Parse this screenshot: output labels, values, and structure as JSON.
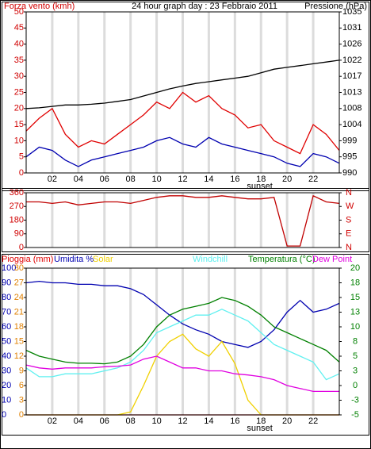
{
  "chart_data": [
    {
      "type": "line",
      "title": "24 hour graph day : 23 Febbraio 2011",
      "ylabel": "Forza vento (kmh)",
      "y2label": "Pressione (hPa)",
      "annotation": "sunset",
      "x": [
        0,
        1,
        2,
        3,
        4,
        5,
        6,
        7,
        8,
        9,
        10,
        11,
        12,
        13,
        14,
        15,
        16,
        17,
        18,
        19,
        20,
        21,
        22,
        23,
        24
      ],
      "xlim": [
        0,
        24
      ],
      "xticks": [
        {
          "value": 2,
          "label": "02"
        },
        {
          "value": 4,
          "label": "04"
        },
        {
          "value": 6,
          "label": "06"
        },
        {
          "value": 8,
          "label": "08"
        },
        {
          "value": 10,
          "label": "10"
        },
        {
          "value": 12,
          "label": "12"
        },
        {
          "value": 14,
          "label": "14"
        },
        {
          "value": 16,
          "label": "16"
        },
        {
          "value": 18,
          "label": "18"
        },
        {
          "value": 20,
          "label": "20"
        },
        {
          "value": 22,
          "label": "22"
        }
      ],
      "ylim": [
        0,
        50
      ],
      "yticks": [
        0,
        5,
        10,
        15,
        20,
        25,
        30,
        35,
        40,
        45,
        50
      ],
      "y2lim": [
        990,
        1035
      ],
      "y2ticks": [
        990,
        {
          "value": 994.5,
          "label": "995"
        },
        999,
        {
          "value": 1003.5,
          "label": "1004"
        },
        1008,
        {
          "value": 1012.5,
          "label": "1013"
        },
        1017,
        {
          "value": 1021.5,
          "label": "1022"
        },
        1026,
        {
          "value": 1030.5,
          "label": "1031"
        },
        1035
      ],
      "series": [
        {
          "color": "#e00000",
          "values": [
            13,
            17,
            20,
            12,
            8,
            10,
            9,
            12,
            15,
            18,
            22,
            20,
            25,
            22,
            24,
            20,
            18,
            14,
            15,
            10,
            8,
            6,
            15,
            12,
            7
          ]
        },
        {
          "color": "#0000b0",
          "values": [
            5,
            8,
            7,
            4,
            2,
            4,
            5,
            6,
            7,
            8,
            10,
            11,
            9,
            8,
            11,
            9,
            8,
            7,
            6,
            5,
            3,
            2,
            6,
            5,
            3
          ]
        },
        {
          "color": "#000000",
          "axis": "y2",
          "values": [
            1008,
            1008.2,
            1008.6,
            1009,
            1009,
            1009.2,
            1009.5,
            1010,
            1010.5,
            1011.5,
            1012.5,
            1013.5,
            1014.3,
            1015,
            1015.5,
            1016,
            1016.5,
            1017,
            1018,
            1019,
            1019.5,
            1020,
            1020.5,
            1021,
            1021.5
          ]
        }
      ]
    },
    {
      "type": "line",
      "x": [
        0,
        1,
        2,
        3,
        4,
        5,
        6,
        7,
        8,
        9,
        10,
        11,
        12,
        13,
        14,
        15,
        16,
        17,
        18,
        19,
        20,
        21,
        22,
        23,
        24
      ],
      "xlim": [
        0,
        24
      ],
      "ylim": [
        0,
        360
      ],
      "yticks": [
        0,
        90,
        180,
        270,
        360
      ],
      "y2lim": [
        0,
        360
      ],
      "y2ticks": [
        {
          "value": 0,
          "label": "N"
        },
        {
          "value": 90,
          "label": "E"
        },
        {
          "value": 180,
          "label": "S"
        },
        {
          "value": 270,
          "label": "W"
        },
        {
          "value": 360,
          "label": "N"
        }
      ],
      "series": [
        {
          "color": "#c00000",
          "values": [
            300,
            300,
            290,
            300,
            280,
            290,
            300,
            300,
            290,
            310,
            330,
            340,
            340,
            330,
            330,
            340,
            330,
            320,
            320,
            330,
            10,
            10,
            340,
            300,
            290
          ]
        }
      ]
    },
    {
      "type": "line",
      "annotation": "sunset",
      "x": [
        0,
        1,
        2,
        3,
        4,
        5,
        6,
        7,
        8,
        9,
        10,
        11,
        12,
        13,
        14,
        15,
        16,
        17,
        18,
        19,
        20,
        21,
        22,
        23,
        24
      ],
      "xlim": [
        0,
        24
      ],
      "xticks": [
        {
          "value": 2,
          "label": "02"
        },
        {
          "value": 4,
          "label": "04"
        },
        {
          "value": 6,
          "label": "06"
        },
        {
          "value": 8,
          "label": "08"
        },
        {
          "value": 10,
          "label": "10"
        },
        {
          "value": 12,
          "label": "12"
        },
        {
          "value": 14,
          "label": "14"
        },
        {
          "value": 16,
          "label": "16"
        },
        {
          "value": 18,
          "label": "18"
        },
        {
          "value": 20,
          "label": "20"
        },
        {
          "value": 22,
          "label": "22"
        }
      ],
      "ylim": [
        0,
        100
      ],
      "yticks": [
        0,
        10,
        20,
        30,
        40,
        50,
        60,
        70,
        80,
        90,
        100
      ],
      "y3lim": [
        0,
        30
      ],
      "y3ticks": [
        0,
        3,
        6,
        9,
        12,
        15,
        18,
        21,
        24,
        27,
        30
      ],
      "y2lim": [
        -5,
        20
      ],
      "y2ticks": [
        -5,
        {
          "value": -2.5,
          "label": "-3"
        },
        0,
        {
          "value": 2.5,
          "label": "3"
        },
        5,
        {
          "value": 7.5,
          "label": "8"
        },
        10,
        {
          "value": 12.5,
          "label": "13"
        },
        15,
        {
          "value": 17.5,
          "label": "18"
        },
        20
      ],
      "series": [
        {
          "name": "Pioggia (mm)",
          "color": "#e00000",
          "axis": "y3",
          "values": [
            0,
            0,
            0,
            0,
            0,
            0,
            0,
            0,
            0,
            0,
            0,
            0,
            0,
            0,
            0,
            0,
            0,
            0,
            0,
            0,
            0,
            0,
            0,
            0,
            0
          ]
        },
        {
          "name": "Umidita %",
          "color": "#0000b0",
          "values": [
            90,
            91,
            90,
            90,
            89,
            89,
            88,
            88,
            86,
            82,
            75,
            68,
            62,
            58,
            55,
            50,
            48,
            46,
            50,
            58,
            70,
            78,
            70,
            72,
            76
          ]
        },
        {
          "name": "Solar",
          "color": "#f0d000",
          "values": [
            0,
            0,
            0,
            0,
            0,
            0,
            0,
            0,
            2,
            20,
            40,
            50,
            55,
            45,
            40,
            50,
            35,
            10,
            0,
            0,
            0,
            0,
            0,
            0,
            0
          ]
        },
        {
          "name": "Windchill",
          "color": "#60f0f0",
          "axis": "y2",
          "values": [
            3,
            1.5,
            1.5,
            2,
            2,
            2,
            2.5,
            3,
            4,
            6,
            9,
            10,
            11,
            12,
            12,
            13,
            12,
            11,
            9,
            7,
            6,
            5,
            4,
            1,
            2
          ]
        },
        {
          "name": "Temperatura (°C)",
          "color": "#008000",
          "axis": "y2",
          "values": [
            6,
            5,
            4.5,
            4,
            3.8,
            3.8,
            3.7,
            4,
            5,
            7,
            10,
            12,
            13,
            13.5,
            14,
            15,
            14.5,
            13.5,
            12,
            10,
            9,
            8,
            7,
            6,
            4
          ]
        },
        {
          "name": "Dew Point",
          "color": "#e000e0",
          "axis": "y2",
          "values": [
            3.5,
            3,
            2.8,
            3,
            3,
            3,
            3.2,
            3.3,
            3.5,
            4.5,
            5,
            4,
            3,
            3,
            2.5,
            2.5,
            2,
            1.8,
            1.5,
            1,
            0,
            -0.5,
            -1,
            -1,
            -1
          ]
        }
      ]
    }
  ]
}
